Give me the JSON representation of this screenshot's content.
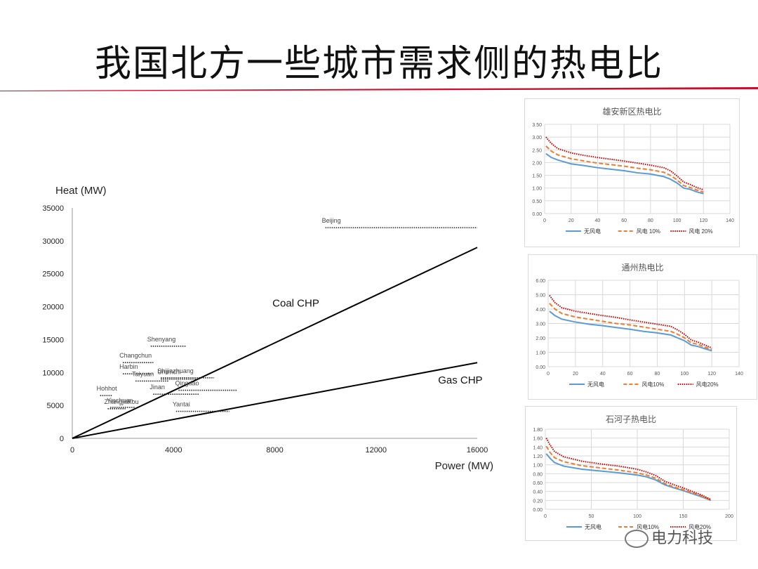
{
  "slide": {
    "title": "我国北方一些城市需求侧的热电比",
    "colors": {
      "rule": "#c8102e",
      "text": "#111111"
    }
  },
  "watermark": {
    "text": "电力科技",
    "icon": "wechat-icon"
  },
  "chart_data": [
    {
      "type": "scatter",
      "title": "",
      "xlabel": "Power (MW)",
      "ylabel": "Heat (MW)",
      "xlim": [
        0,
        16000
      ],
      "ylim": [
        0,
        35000
      ],
      "xticks": [
        0,
        4000,
        8000,
        12000,
        16000
      ],
      "yticks": [
        0,
        5000,
        10000,
        15000,
        20000,
        25000,
        30000,
        35000
      ],
      "grid": false,
      "lines": [
        {
          "name": "Coal CHP",
          "x": [
            0,
            16000
          ],
          "y": [
            0,
            29000
          ]
        },
        {
          "name": "Gas CHP",
          "x": [
            0,
            16000
          ],
          "y": [
            0,
            11500
          ]
        }
      ],
      "city_ranges": [
        {
          "name": "Beijing",
          "x_min": 10000,
          "x_max": 16000,
          "y": 32000
        },
        {
          "name": "Shenyang",
          "x_min": 3100,
          "x_max": 4500,
          "y": 14000
        },
        {
          "name": "Changchun",
          "x_min": 2000,
          "x_max": 3200,
          "y": 11500
        },
        {
          "name": "Harbin",
          "x_min": 2000,
          "x_max": 3200,
          "y": 9800
        },
        {
          "name": "Urumchi",
          "x_min": 3500,
          "x_max": 5000,
          "y": 9000
        },
        {
          "name": "Shijiazhuang",
          "x_min": 3500,
          "x_max": 5600,
          "y": 9200
        },
        {
          "name": "Taiyuan",
          "x_min": 2500,
          "x_max": 3800,
          "y": 8700
        },
        {
          "name": "Qingdao",
          "x_min": 4200,
          "x_max": 6500,
          "y": 7300
        },
        {
          "name": "Hohhot",
          "x_min": 1100,
          "x_max": 1600,
          "y": 6500
        },
        {
          "name": "Jinan",
          "x_min": 3200,
          "x_max": 5000,
          "y": 6700
        },
        {
          "name": "Yinchuan",
          "x_min": 1500,
          "x_max": 2500,
          "y": 4700
        },
        {
          "name": "Zhangjiakou",
          "x_min": 1400,
          "x_max": 2100,
          "y": 4500
        },
        {
          "name": "Yantai",
          "x_min": 4100,
          "x_max": 6200,
          "y": 4100
        }
      ],
      "annotations": [
        "Coal CHP",
        "Gas CHP"
      ]
    },
    {
      "type": "line",
      "title": "雄安新区热电比",
      "xlim": [
        0,
        140
      ],
      "ylim": [
        0,
        3.5
      ],
      "xticks": [
        0,
        20,
        40,
        60,
        80,
        100,
        120,
        140
      ],
      "yticks": [
        "0.00",
        "0.50",
        "1.00",
        "1.50",
        "2.00",
        "2.50",
        "3.00",
        "3.50"
      ],
      "grid": true,
      "legend": "bottom",
      "x": [
        1,
        5,
        10,
        20,
        30,
        40,
        50,
        60,
        70,
        80,
        90,
        95,
        100,
        105,
        110,
        115,
        120
      ],
      "series": [
        {
          "name": "无风电",
          "color": "#5b9bd5",
          "style": "solid",
          "values": [
            2.35,
            2.2,
            2.1,
            1.95,
            1.88,
            1.8,
            1.74,
            1.68,
            1.6,
            1.55,
            1.45,
            1.35,
            1.2,
            1.0,
            0.95,
            0.85,
            0.78
          ]
        },
        {
          "name": "风电 10%",
          "color": "#ed7d31",
          "style": "dashed",
          "values": [
            2.65,
            2.45,
            2.3,
            2.15,
            2.06,
            1.98,
            1.92,
            1.86,
            1.78,
            1.72,
            1.62,
            1.5,
            1.32,
            1.1,
            1.02,
            0.92,
            0.84
          ]
        },
        {
          "name": "风电 20%",
          "color": "#c00000",
          "style": "dotted",
          "values": [
            3.0,
            2.75,
            2.55,
            2.38,
            2.28,
            2.2,
            2.13,
            2.06,
            1.98,
            1.9,
            1.8,
            1.68,
            1.48,
            1.24,
            1.14,
            1.02,
            0.93
          ]
        }
      ]
    },
    {
      "type": "line",
      "title": "通州热电比",
      "xlim": [
        0,
        140
      ],
      "ylim": [
        0,
        6
      ],
      "xticks": [
        0,
        20,
        40,
        60,
        80,
        100,
        120,
        140
      ],
      "yticks": [
        "0.00",
        "1.00",
        "2.00",
        "3.00",
        "4.00",
        "5.00",
        "6.00"
      ],
      "grid": true,
      "legend": "bottom",
      "x": [
        1,
        5,
        10,
        20,
        30,
        40,
        50,
        60,
        70,
        80,
        90,
        95,
        100,
        105,
        110,
        115,
        120
      ],
      "series": [
        {
          "name": "无风电",
          "color": "#5b9bd5",
          "style": "solid",
          "values": [
            3.85,
            3.55,
            3.3,
            3.1,
            2.95,
            2.85,
            2.72,
            2.6,
            2.45,
            2.35,
            2.2,
            2.0,
            1.8,
            1.5,
            1.4,
            1.25,
            1.1
          ]
        },
        {
          "name": "风电10%",
          "color": "#ed7d31",
          "style": "dashed",
          "values": [
            4.4,
            4.0,
            3.7,
            3.45,
            3.3,
            3.15,
            3.0,
            2.9,
            2.75,
            2.6,
            2.45,
            2.25,
            2.0,
            1.65,
            1.55,
            1.35,
            1.2
          ]
        },
        {
          "name": "风电20%",
          "color": "#c00000",
          "style": "dotted",
          "values": [
            4.95,
            4.45,
            4.1,
            3.85,
            3.7,
            3.55,
            3.42,
            3.25,
            3.1,
            2.95,
            2.8,
            2.55,
            2.25,
            1.85,
            1.7,
            1.5,
            1.3
          ]
        }
      ]
    },
    {
      "type": "line",
      "title": "石河子热电比",
      "xlim": [
        0,
        200
      ],
      "ylim": [
        0,
        1.8
      ],
      "xticks": [
        0,
        50,
        100,
        150,
        200
      ],
      "yticks": [
        "0.00",
        "0.20",
        "0.40",
        "0.60",
        "0.80",
        "1.00",
        "1.20",
        "1.40",
        "1.60",
        "1.80"
      ],
      "grid": true,
      "legend": "bottom",
      "x": [
        1,
        5,
        10,
        20,
        40,
        60,
        80,
        100,
        110,
        120,
        130,
        140,
        150,
        160,
        170,
        180
      ],
      "series": [
        {
          "name": "无风电",
          "color": "#5b9bd5",
          "style": "solid",
          "values": [
            1.25,
            1.15,
            1.05,
            0.97,
            0.9,
            0.86,
            0.82,
            0.77,
            0.73,
            0.66,
            0.55,
            0.48,
            0.42,
            0.35,
            0.28,
            0.2
          ]
        },
        {
          "name": "风电10%",
          "color": "#ed7d31",
          "style": "dashed",
          "values": [
            1.42,
            1.28,
            1.16,
            1.07,
            0.98,
            0.93,
            0.88,
            0.82,
            0.77,
            0.7,
            0.58,
            0.5,
            0.44,
            0.37,
            0.3,
            0.21
          ]
        },
        {
          "name": "风电20%",
          "color": "#c00000",
          "style": "dotted",
          "values": [
            1.6,
            1.45,
            1.3,
            1.18,
            1.08,
            1.02,
            0.97,
            0.9,
            0.84,
            0.76,
            0.63,
            0.55,
            0.48,
            0.4,
            0.32,
            0.22
          ]
        }
      ]
    }
  ]
}
